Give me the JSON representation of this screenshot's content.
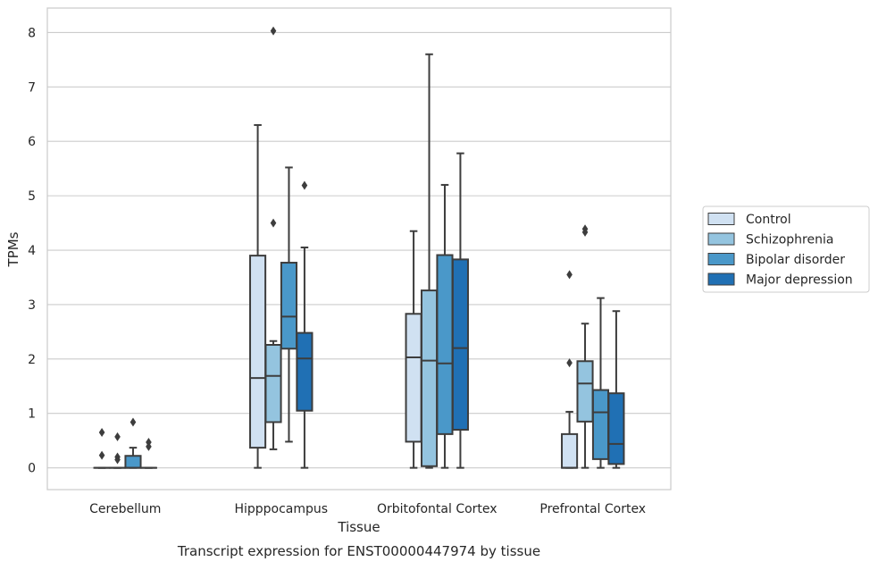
{
  "chart_data": {
    "type": "boxplot",
    "title": "",
    "caption": "Transcript expression for ENST00000447974 by tissue",
    "xlabel": "Tissue",
    "ylabel": "TPMs",
    "ylim": [
      -0.4,
      8.45
    ],
    "yticks": [
      0,
      1,
      2,
      3,
      4,
      5,
      6,
      7,
      8
    ],
    "ytick_labels": [
      "0",
      "1",
      "2",
      "3",
      "4",
      "5",
      "6",
      "7",
      "8"
    ],
    "grid": "horizontal",
    "legend_position": "outside-right",
    "categories": [
      "Cerebellum",
      "Hipppocampus",
      "Orbitofontal Cortex",
      "Prefrontal Cortex"
    ],
    "series": [
      {
        "name": "Control",
        "color": "#d0e1f2",
        "boxes": [
          {
            "whisker_low": 0,
            "q1": 0,
            "median": 0,
            "q3": 0,
            "whisker_high": 0,
            "outliers": [
              0.65,
              0.23
            ]
          },
          {
            "whisker_low": 0,
            "q1": 0.37,
            "median": 1.65,
            "q3": 3.9,
            "whisker_high": 6.3,
            "outliers": []
          },
          {
            "whisker_low": 0,
            "q1": 0.48,
            "median": 2.03,
            "q3": 2.83,
            "whisker_high": 4.35,
            "outliers": []
          },
          {
            "whisker_low": 0,
            "q1": 0,
            "median": 0,
            "q3": 0.62,
            "whisker_high": 1.03,
            "outliers": [
              1.93,
              3.55
            ]
          }
        ]
      },
      {
        "name": "Schizophrenia",
        "color": "#94c4df",
        "boxes": [
          {
            "whisker_low": 0,
            "q1": 0,
            "median": 0,
            "q3": 0,
            "whisker_high": 0,
            "outliers": [
              0.57,
              0.2,
              0.15
            ]
          },
          {
            "whisker_low": 0.34,
            "q1": 0.84,
            "median": 1.69,
            "q3": 2.26,
            "whisker_high": 2.33,
            "outliers": [
              4.5,
              8.03
            ]
          },
          {
            "whisker_low": 0,
            "q1": 0.03,
            "median": 1.97,
            "q3": 3.26,
            "whisker_high": 7.6,
            "outliers": []
          },
          {
            "whisker_low": 0,
            "q1": 0.85,
            "median": 1.55,
            "q3": 1.96,
            "whisker_high": 2.65,
            "outliers": [
              4.33,
              4.39
            ]
          }
        ]
      },
      {
        "name": "Bipolar disorder",
        "color": "#4a98c9",
        "boxes": [
          {
            "whisker_low": 0,
            "q1": 0,
            "median": 0,
            "q3": 0.22,
            "whisker_high": 0.37,
            "outliers": [
              0.84
            ]
          },
          {
            "whisker_low": 0.48,
            "q1": 2.19,
            "median": 2.78,
            "q3": 3.77,
            "whisker_high": 5.52,
            "outliers": []
          },
          {
            "whisker_low": 0,
            "q1": 0.62,
            "median": 1.92,
            "q3": 3.91,
            "whisker_high": 5.2,
            "outliers": []
          },
          {
            "whisker_low": 0,
            "q1": 0.16,
            "median": 1.02,
            "q3": 1.43,
            "whisker_high": 3.12,
            "outliers": []
          }
        ]
      },
      {
        "name": "Major depression",
        "color": "#2070b4",
        "boxes": [
          {
            "whisker_low": 0,
            "q1": 0,
            "median": 0,
            "q3": 0,
            "whisker_high": 0,
            "outliers": [
              0.47,
              0.39
            ]
          },
          {
            "whisker_low": 0,
            "q1": 1.05,
            "median": 2.01,
            "q3": 2.48,
            "whisker_high": 4.05,
            "outliers": [
              5.19
            ]
          },
          {
            "whisker_low": 0,
            "q1": 0.7,
            "median": 2.2,
            "q3": 3.83,
            "whisker_high": 5.78,
            "outliers": []
          },
          {
            "whisker_low": 0,
            "q1": 0.07,
            "median": 0.44,
            "q3": 1.37,
            "whisker_high": 2.88,
            "outliers": []
          }
        ]
      }
    ]
  }
}
